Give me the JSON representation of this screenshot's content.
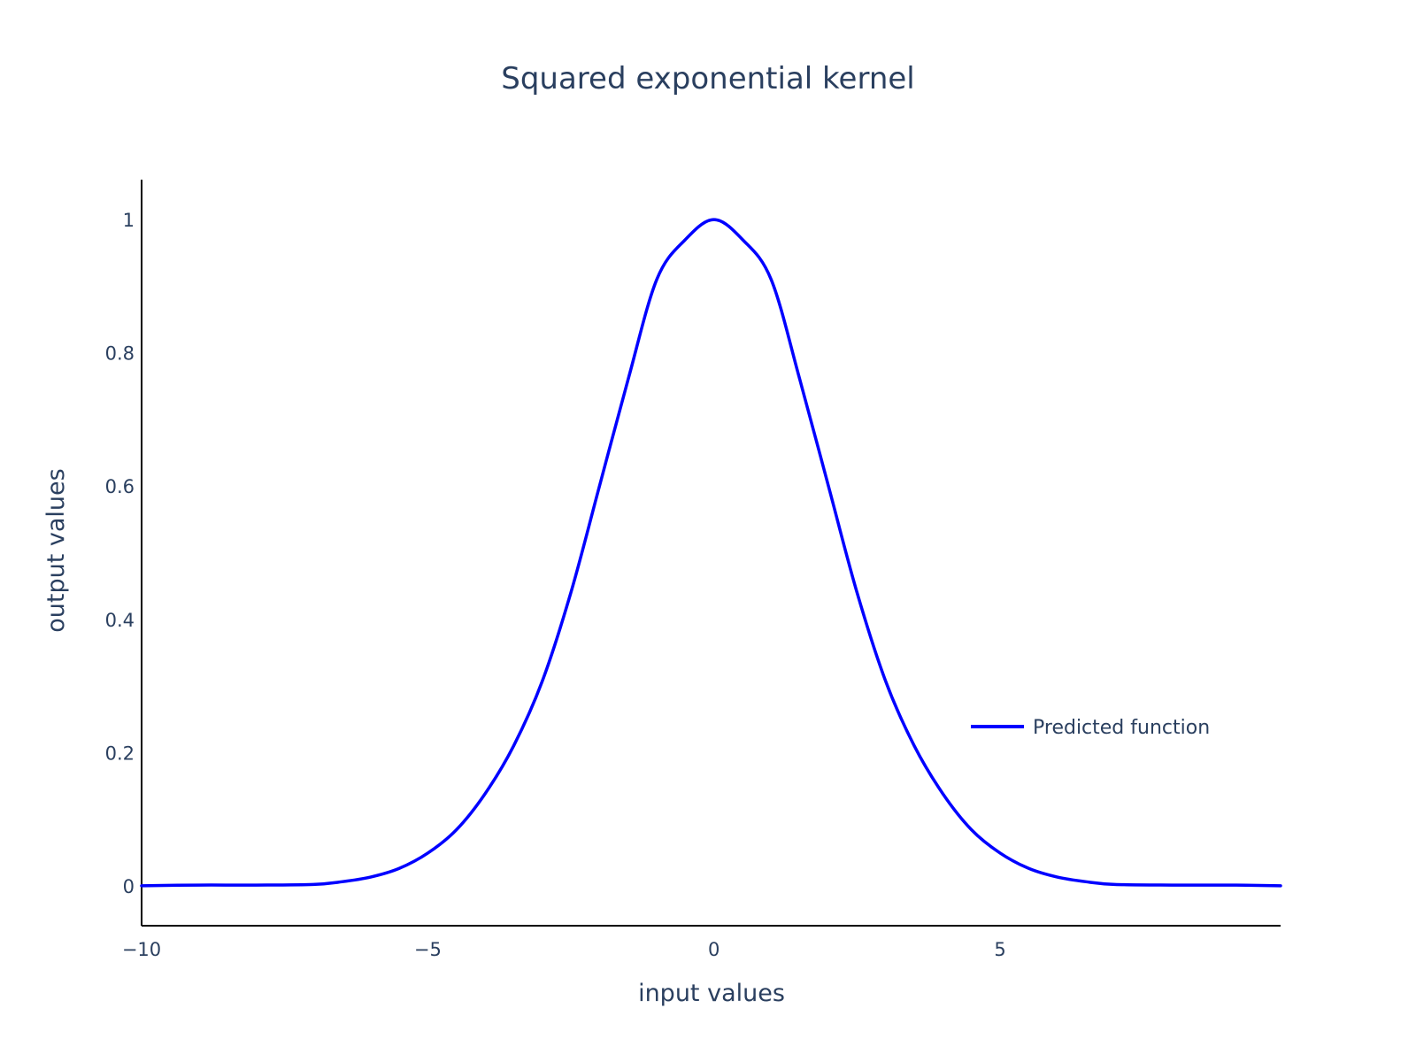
{
  "chart_data": {
    "type": "line",
    "title": "Squared exponential kernel",
    "xlabel": "input values",
    "ylabel": "output values",
    "xlim": [
      -10,
      9.9
    ],
    "ylim": [
      -0.06,
      1.06
    ],
    "grid": false,
    "legend_position": "right",
    "x_ticks": [
      {
        "value": -10,
        "label": "−10"
      },
      {
        "value": -5,
        "label": "−5"
      },
      {
        "value": 0,
        "label": "0"
      },
      {
        "value": 5,
        "label": "5"
      }
    ],
    "y_ticks": [
      {
        "value": 0,
        "label": "0"
      },
      {
        "value": 0.2,
        "label": "0.2"
      },
      {
        "value": 0.4,
        "label": "0.4"
      },
      {
        "value": 0.6,
        "label": "0.6"
      },
      {
        "value": 0.8,
        "label": "0.8"
      },
      {
        "value": 1,
        "label": "1"
      }
    ],
    "series": [
      {
        "name": "Predicted function",
        "color": "#0000ff",
        "x": [
          -10,
          -9,
          -8,
          -7,
          -6.5,
          -6,
          -5.5,
          -5,
          -4.5,
          -4,
          -3.5,
          -3,
          -2.5,
          -2,
          -1.5,
          -1,
          -0.5,
          0,
          0.5,
          1,
          1.5,
          2,
          2.5,
          3,
          3.5,
          4,
          4.5,
          5,
          5.5,
          6,
          6.5,
          7,
          8,
          9,
          9.9
        ],
        "y": [
          0,
          0.001,
          0.001,
          0.002,
          0.006,
          0.013,
          0.026,
          0.049,
          0.084,
          0.138,
          0.21,
          0.307,
          0.44,
          0.6,
          0.76,
          0.91,
          0.97,
          1.0,
          0.97,
          0.91,
          0.76,
          0.6,
          0.44,
          0.307,
          0.21,
          0.138,
          0.084,
          0.049,
          0.026,
          0.013,
          0.006,
          0.002,
          0.001,
          0.001,
          0
        ]
      }
    ]
  }
}
